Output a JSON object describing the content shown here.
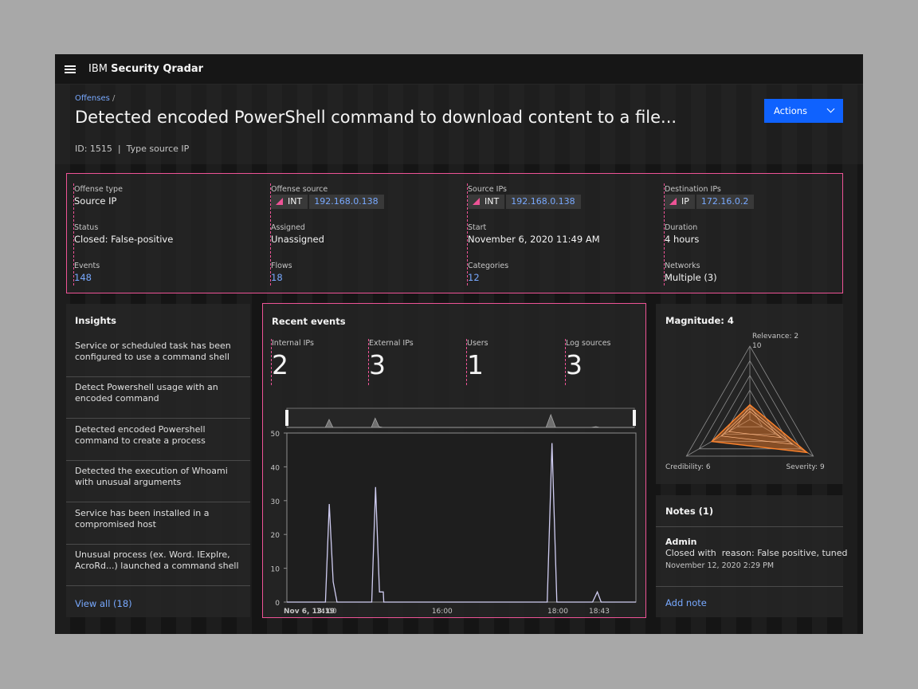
{
  "topbar": {
    "brand_prefix": "IBM",
    "brand_name": "Security Qradar"
  },
  "header": {
    "breadcrumb": "Offenses",
    "breadcrumb_sep": "/",
    "title": "Detected encoded PowerShell command to download content to a file...",
    "meta": "ID: 1515  |  Type source IP",
    "actions_label": "Actions"
  },
  "summary": {
    "offense_type": {
      "label": "Offense type",
      "value": "Source IP"
    },
    "offense_source": {
      "label": "Offense source",
      "tag": "INT",
      "ip": "192.168.0.138"
    },
    "source_ips": {
      "label": "Source IPs",
      "tag": "INT",
      "ip": "192.168.0.138"
    },
    "destination_ips": {
      "label": "Destination IPs",
      "tag": "IP",
      "ip": "172.16.0.2"
    },
    "status": {
      "label": "Status",
      "value": "Closed: False-positive"
    },
    "assigned": {
      "label": "Assigned",
      "value": "Unassigned"
    },
    "start": {
      "label": "Start",
      "value": "November 6, 2020 11:49 AM"
    },
    "duration": {
      "label": "Duration",
      "value": "4 hours"
    },
    "events": {
      "label": "Events",
      "value": "148"
    },
    "flows": {
      "label": "Flows",
      "value": "18"
    },
    "categories": {
      "label": "Categories",
      "value": "12"
    },
    "networks": {
      "label": "Networks",
      "value": "Multiple (3)"
    }
  },
  "insights": {
    "title": "Insights",
    "items": [
      "Service or scheduled task has been configured to use a command shell",
      "Detect Powershell usage with an encoded command",
      "Detected encoded Powershell command to  create a process",
      "Detected the execution of Whoami with unusual arguments",
      "Service has been installed in a compromised host",
      "Unusual process (ex. Word. IExplre, AcroRd...) launched a command shell"
    ],
    "view_all": "View all (18)"
  },
  "recent_events": {
    "title": "Recent events",
    "metrics": [
      {
        "label": "Internal IPs",
        "value": "2"
      },
      {
        "label": "External IPs",
        "value": "3"
      },
      {
        "label": "Users",
        "value": "1"
      },
      {
        "label": "Log sources",
        "value": "3"
      }
    ]
  },
  "chart_data": {
    "type": "line",
    "title": "",
    "xlabel": "",
    "ylabel": "",
    "ylim": [
      0,
      50
    ],
    "yticks": [
      0,
      10,
      20,
      30,
      40,
      50
    ],
    "x_tick_labels": [
      {
        "t": 0,
        "label": "Nov 6, 13:19",
        "bold": true
      },
      {
        "t": 41,
        "label": "14:00"
      },
      {
        "t": 161,
        "label": "16:00"
      },
      {
        "t": 281,
        "label": "18:00"
      },
      {
        "t": 324,
        "label": "18:43"
      }
    ],
    "series": [
      {
        "x": [
          0,
          40,
          44,
          48,
          52,
          88,
          92,
          96,
          100,
          100.5,
          106,
          106.5,
          270,
          275,
          280,
          317,
          322,
          326,
          362
        ],
        "y": [
          0,
          0,
          29,
          6,
          0,
          0,
          34,
          3,
          3,
          0,
          0,
          0,
          0,
          47,
          0,
          0,
          3,
          0,
          0
        ]
      }
    ],
    "overview_series": {
      "x": [
        0,
        40,
        44,
        48,
        88,
        92,
        96,
        100,
        270,
        275,
        280,
        317,
        322,
        326,
        362
      ],
      "y": [
        0,
        0,
        29,
        0,
        0,
        34,
        3,
        0,
        0,
        47,
        0,
        0,
        3,
        0,
        0
      ]
    },
    "colors": {
      "line": "#d0cdf2",
      "area": "#6f6f6f"
    }
  },
  "magnitude": {
    "title": "Magnitude: 4",
    "axis_max_label": "10",
    "axes": [
      {
        "label": "Relevance: 2",
        "value": 2
      },
      {
        "label": "Severity: 9",
        "value": 9
      },
      {
        "label": "Credibility: 6",
        "value": 6
      }
    ],
    "scale_max": 10,
    "rings": 5,
    "colors": {
      "grid": "#8d8d8d",
      "fill": "#ff832b",
      "stroke": "#ff832b"
    }
  },
  "notes": {
    "title": "Notes (1)",
    "author": "Admin",
    "text": "Closed with  reason: False positive, tuned",
    "date": "November 12, 2020 2:29 PM",
    "add_label": "Add note"
  }
}
